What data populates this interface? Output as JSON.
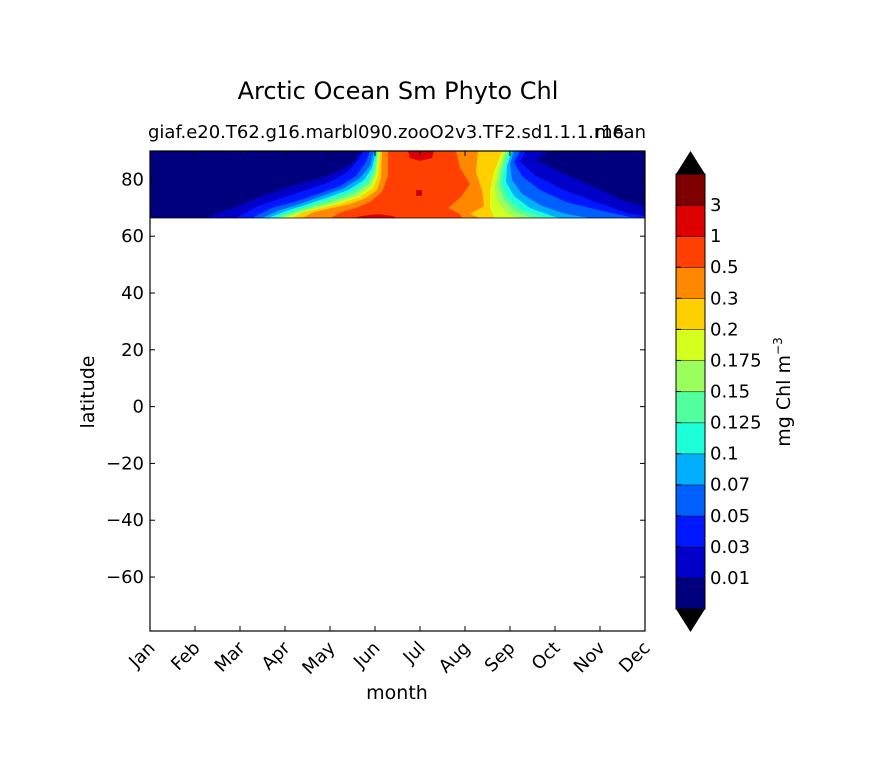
{
  "chart_data": {
    "type": "contour",
    "title": "Arctic Ocean Sm Phyto Chl",
    "subtitle_left": "giaf.e20.T62.g16.marbl090.zooO2v3.TF2.sd1.1.1.r16",
    "subtitle_right": "mean",
    "xlabel": "month",
    "ylabel": "latitude",
    "x_categories": [
      "Jan",
      "Feb",
      "Mar",
      "Apr",
      "May",
      "Jun",
      "Jul",
      "Aug",
      "Sep",
      "Oct",
      "Nov",
      "Dec"
    ],
    "ylim": [
      -79,
      90
    ],
    "yticks": [
      80,
      60,
      40,
      20,
      0,
      -20,
      -40,
      -60
    ],
    "ytick_labels": [
      "80",
      "60",
      "40",
      "20",
      "0",
      "−20",
      "−40",
      "−60"
    ],
    "data_lat_range": [
      66.5,
      90
    ],
    "colorbar": {
      "label": "mg Chl m",
      "label_exponent": "−3",
      "levels": [
        "0.01",
        "0.03",
        "0.05",
        "0.07",
        "0.1",
        "0.125",
        "0.15",
        "0.175",
        "0.2",
        "0.3",
        "0.5",
        "1",
        "3"
      ],
      "colors": [
        "#00007f",
        "#0000c8",
        "#0018ff",
        "#0060ff",
        "#00b0ff",
        "#1cffda",
        "#52ff9e",
        "#9aff5c",
        "#d4ff1f",
        "#ffd000",
        "#ff8800",
        "#ff4000",
        "#dc0000",
        "#7f0000"
      ],
      "extend": "both",
      "under_color": "#000000",
      "over_color": "#000000"
    },
    "contour_summary": [
      {
        "month": "Jan",
        "lat_66_90_class": 0
      },
      {
        "month": "Feb",
        "lat_66_90_class": 0
      },
      {
        "month": "Mar",
        "lat_66_90_class": 0
      },
      {
        "month": "Apr",
        "lat_66_90_class": 1
      },
      {
        "month": "May",
        "lat_66_90_class": 3
      },
      {
        "month": "Jun",
        "lat_66_90_class": 10
      },
      {
        "month": "Jul",
        "lat_66_90_class": 11
      },
      {
        "month": "Aug",
        "lat_66_90_class": 10
      },
      {
        "month": "Sep",
        "lat_66_90_class": 3
      },
      {
        "month": "Oct",
        "lat_66_90_class": 1
      },
      {
        "month": "Nov",
        "lat_66_90_class": 0
      },
      {
        "month": "Dec",
        "lat_66_90_class": 0
      }
    ]
  }
}
